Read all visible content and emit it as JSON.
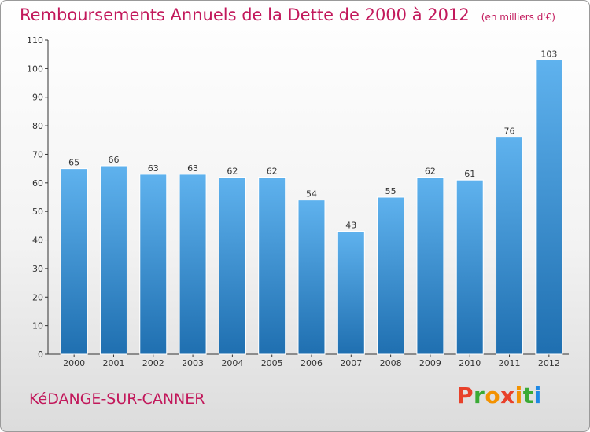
{
  "header": {
    "title": "Remboursements Annuels de la Dette de 2000 à 2012",
    "subtitle": "(en milliers d'€)"
  },
  "footer": {
    "town": "KéDANGE-SUR-CANNER",
    "brand_letters": [
      "P",
      "r",
      "o",
      "x",
      "i",
      "t",
      "i"
    ],
    "brand_colors": [
      "#e8412a",
      "#3aaa35",
      "#f39200",
      "#e8412a",
      "#f39200",
      "#3aaa35",
      "#1e88e5"
    ]
  },
  "colors": {
    "title": "#c2185b",
    "bar_top": "#5fb2ee",
    "bar_bottom": "#1f6fb0",
    "axis": "#333333"
  },
  "chart_data": {
    "type": "bar",
    "title": "Remboursements Annuels de la Dette de 2000 à 2012",
    "subtitle": "(en milliers d'€)",
    "xlabel": "",
    "ylabel": "",
    "categories": [
      "2000",
      "2001",
      "2002",
      "2003",
      "2004",
      "2005",
      "2006",
      "2007",
      "2008",
      "2009",
      "2010",
      "2011",
      "2012"
    ],
    "values": [
      65,
      66,
      63,
      63,
      62,
      62,
      54,
      43,
      55,
      62,
      61,
      76,
      103
    ],
    "ylim": [
      0,
      110
    ],
    "yticks": [
      0,
      10,
      20,
      30,
      40,
      50,
      60,
      70,
      80,
      90,
      100,
      110
    ],
    "grid": false,
    "data_labels": true
  }
}
